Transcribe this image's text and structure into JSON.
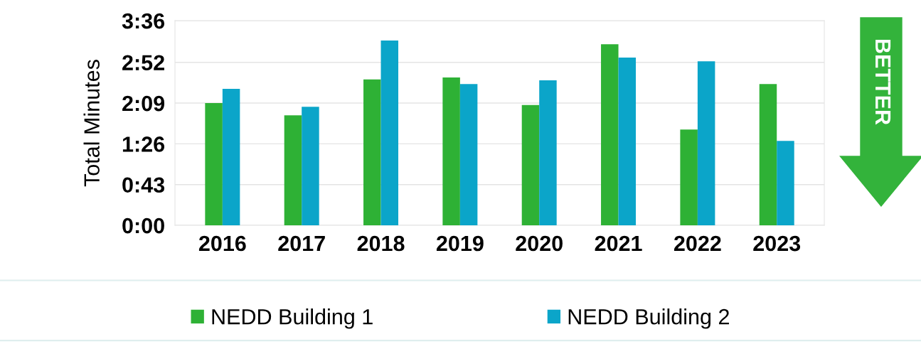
{
  "chart_data": {
    "type": "bar",
    "ylabel": "Total Minutes",
    "categories": [
      "2016",
      "2017",
      "2018",
      "2019",
      "2020",
      "2021",
      "2022",
      "2023"
    ],
    "series": [
      {
        "name": "NEDD Building 1",
        "color": "#2eb135",
        "values": [
          129,
          116,
          154,
          156,
          127,
          191,
          101,
          149
        ]
      },
      {
        "name": "NEDD Building 2",
        "color": "#0ba5c9",
        "values": [
          144,
          125,
          195,
          149,
          153,
          177,
          173,
          89
        ]
      }
    ],
    "ylim": [
      0,
      216
    ],
    "yticks": [
      {
        "value": 0,
        "label": "0:00"
      },
      {
        "value": 43,
        "label": "0:43"
      },
      {
        "value": 86,
        "label": "1:26"
      },
      {
        "value": 129,
        "label": "2:09"
      },
      {
        "value": 172,
        "label": "2:52"
      },
      {
        "value": 216,
        "label": "3:36"
      }
    ],
    "grid": "y",
    "legend": "bottom",
    "annotations": [
      "BETTER"
    ]
  }
}
